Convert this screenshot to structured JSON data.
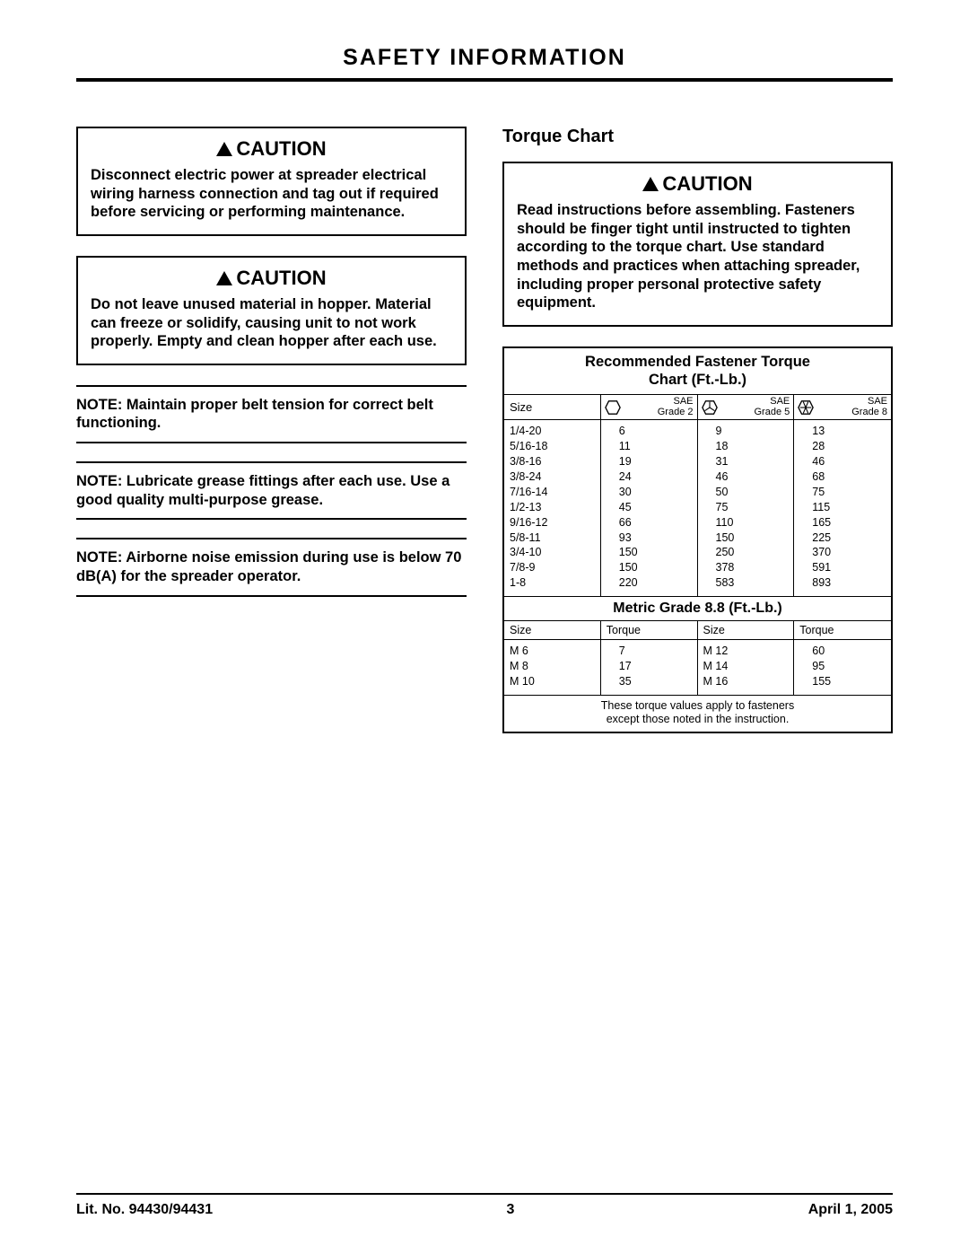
{
  "page": {
    "title": "SAFETY INFORMATION",
    "footer_left": "Lit. No. 94430/94431",
    "footer_center": "3",
    "footer_right": "April 1, 2005"
  },
  "left": {
    "caution_label": "CAUTION",
    "caution1": "Disconnect electric power at spreader electrical wiring harness connection and tag out if required before servicing or performing maintenance.",
    "caution2": "Do not leave unused material in hopper. Material can freeze or solidify, causing unit to not work properly. Empty and clean hopper after each use.",
    "note1": "NOTE: Maintain proper belt tension for correct belt functioning.",
    "note2": "NOTE: Lubricate grease fittings after each use. Use a good quality multi-purpose grease.",
    "note3": "NOTE: Airborne noise emission during use is below 70 dB(A) for the spreader operator."
  },
  "right": {
    "heading": "Torque Chart",
    "caution_label": "CAUTION",
    "caution_body": "Read instructions before assembling. Fasteners should be finger tight until instructed to tighten according to the torque chart. Use standard methods and practices when attaching spreader, including proper personal protective safety equipment."
  },
  "torque": {
    "title_line1": "Recommended Fastener Torque",
    "title_line2": "Chart (Ft.-Lb.)",
    "size_label": "Size",
    "grade2_label1": "SAE",
    "grade2_label2": "Grade 2",
    "grade5_label1": "SAE",
    "grade5_label2": "Grade 5",
    "grade8_label1": "SAE",
    "grade8_label2": "Grade 8",
    "sizes": [
      "1/4-20",
      "5/16-18",
      "3/8-16",
      "3/8-24",
      "7/16-14",
      "1/2-13",
      "9/16-12",
      "5/8-11",
      "3/4-10",
      "7/8-9",
      "1-8"
    ],
    "g2": [
      "6",
      "11",
      "19",
      "24",
      "30",
      "45",
      "66",
      "93",
      "150",
      "150",
      "220"
    ],
    "g5": [
      "9",
      "18",
      "31",
      "46",
      "50",
      "75",
      "110",
      "150",
      "250",
      "378",
      "583"
    ],
    "g8": [
      "13",
      "28",
      "46",
      "68",
      "75",
      "115",
      "165",
      "225",
      "370",
      "591",
      "893"
    ],
    "metric_title": "Metric Grade 8.8 (Ft.-Lb.)",
    "mh_size1": "Size",
    "mh_torque1": "Torque",
    "mh_size2": "Size",
    "mh_torque2": "Torque",
    "m_s1": [
      "M 6",
      "M 8",
      "M 10"
    ],
    "m_t1": [
      "7",
      "17",
      "35"
    ],
    "m_s2": [
      "M 12",
      "M 14",
      "M 16"
    ],
    "m_t2": [
      "60",
      "95",
      "155"
    ],
    "footnote1": "These torque values apply to fasteners",
    "footnote2": "except those noted in the instruction."
  }
}
